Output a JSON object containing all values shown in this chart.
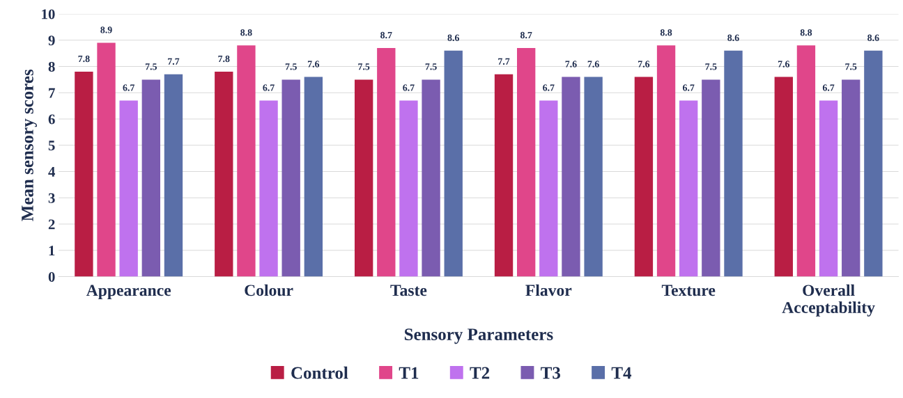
{
  "chart_data": {
    "type": "bar",
    "xlabel": "Sensory Parameters",
    "ylabel": "Mean sensory scores",
    "categories": [
      "Appearance",
      "Colour",
      "Taste",
      "Flavor",
      "Texture",
      "Overall\nAcceptability"
    ],
    "series": [
      {
        "name": "Control",
        "color": "#b91e44",
        "values": [
          7.8,
          7.8,
          7.5,
          7.7,
          7.6,
          7.6
        ]
      },
      {
        "name": "T1",
        "color": "#e0468a",
        "values": [
          8.9,
          8.8,
          8.7,
          8.7,
          8.8,
          8.8
        ]
      },
      {
        "name": "T2",
        "color": "#bf72ee",
        "values": [
          6.7,
          6.7,
          6.7,
          6.7,
          6.7,
          6.7
        ]
      },
      {
        "name": "T3",
        "color": "#7b5cb0",
        "values": [
          7.5,
          7.5,
          7.5,
          7.6,
          7.5,
          7.5
        ]
      },
      {
        "name": "T4",
        "color": "#5a6fa8",
        "values": [
          7.7,
          7.6,
          8.6,
          7.6,
          8.6,
          8.6
        ]
      }
    ],
    "ylim": [
      0,
      10
    ],
    "yticks": [
      0,
      1,
      2,
      3,
      4,
      5,
      6,
      7,
      8,
      9,
      10
    ],
    "grid": "y",
    "legend": "bottom",
    "data_labels": true
  }
}
